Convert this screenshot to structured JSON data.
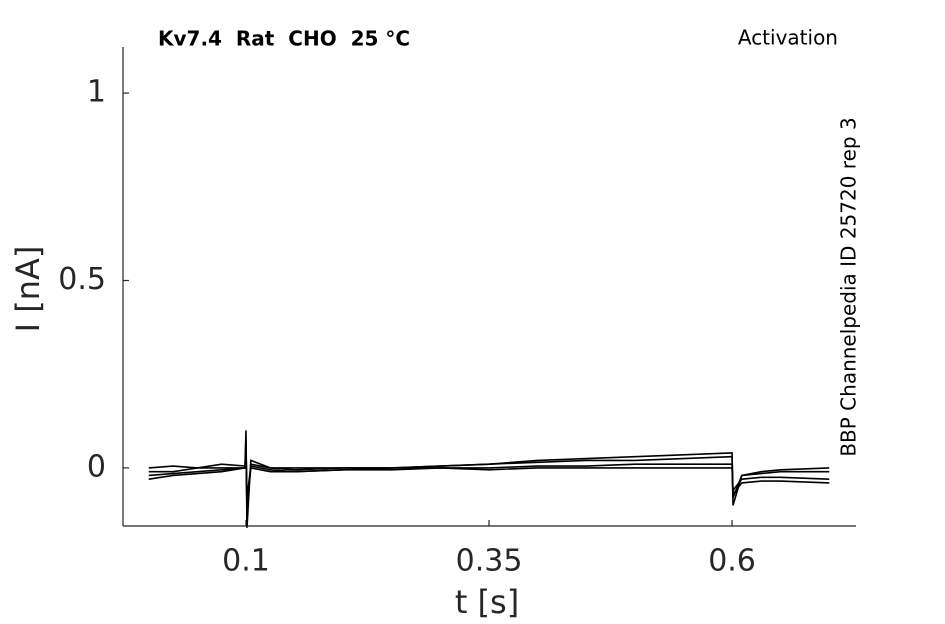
{
  "chart_data": {
    "type": "line",
    "title": "Kv7.4  Rat  CHO  25 °C",
    "annotation": "Activation",
    "side_label": "BBP Channelpedia ID 25720 rep 3",
    "xlabel": "t [s]",
    "ylabel": "I [nA]",
    "x": [
      0,
      0.025,
      0.05,
      0.075,
      0.099,
      0.1,
      0.101,
      0.105,
      0.125,
      0.15,
      0.2,
      0.25,
      0.3,
      0.35,
      0.4,
      0.45,
      0.5,
      0.55,
      0.599,
      0.6,
      0.601,
      0.61,
      0.63,
      0.65,
      0.7
    ],
    "series": [
      {
        "color": "#000000",
        "values": [
          0,
          0.005,
          0,
          0.01,
          0.005,
          0.1,
          -0.16,
          0.02,
          0,
          0,
          0,
          0,
          0.005,
          0.01,
          0.02,
          0.025,
          0.03,
          0.035,
          0.04,
          0.04,
          -0.1,
          -0.02,
          -0.01,
          -0.005,
          0
        ]
      },
      {
        "color": "#000000",
        "values": [
          -0.01,
          -0.01,
          0,
          0,
          0,
          0.08,
          -0.12,
          0.01,
          0,
          -0.005,
          0,
          0,
          0.005,
          0.01,
          0.015,
          0.02,
          0.02,
          0.025,
          0.03,
          0.03,
          -0.08,
          -0.02,
          -0.015,
          -0.01,
          -0.01
        ]
      },
      {
        "color": "#000000",
        "values": [
          -0.03,
          -0.02,
          -0.015,
          -0.01,
          0,
          0.05,
          -0.08,
          0.005,
          -0.005,
          -0.01,
          -0.005,
          0,
          0,
          0,
          0.005,
          0.005,
          0.01,
          0.01,
          0.01,
          0.01,
          -0.06,
          -0.03,
          -0.025,
          -0.025,
          -0.03
        ]
      },
      {
        "color": "#000000",
        "values": [
          -0.02,
          -0.015,
          -0.01,
          -0.005,
          0,
          0.06,
          -0.1,
          0,
          -0.01,
          -0.01,
          -0.005,
          -0.005,
          0,
          -0.005,
          0,
          0,
          0,
          0,
          0,
          0,
          -0.07,
          -0.04,
          -0.035,
          -0.035,
          -0.04
        ]
      }
    ],
    "xlim": [
      -0.0265,
      0.7275
    ],
    "xticks": [
      0.1,
      0.35,
      0.6
    ],
    "ylim": [
      -0.155,
      1.123
    ],
    "yticks": [
      0,
      0.5,
      1
    ]
  }
}
